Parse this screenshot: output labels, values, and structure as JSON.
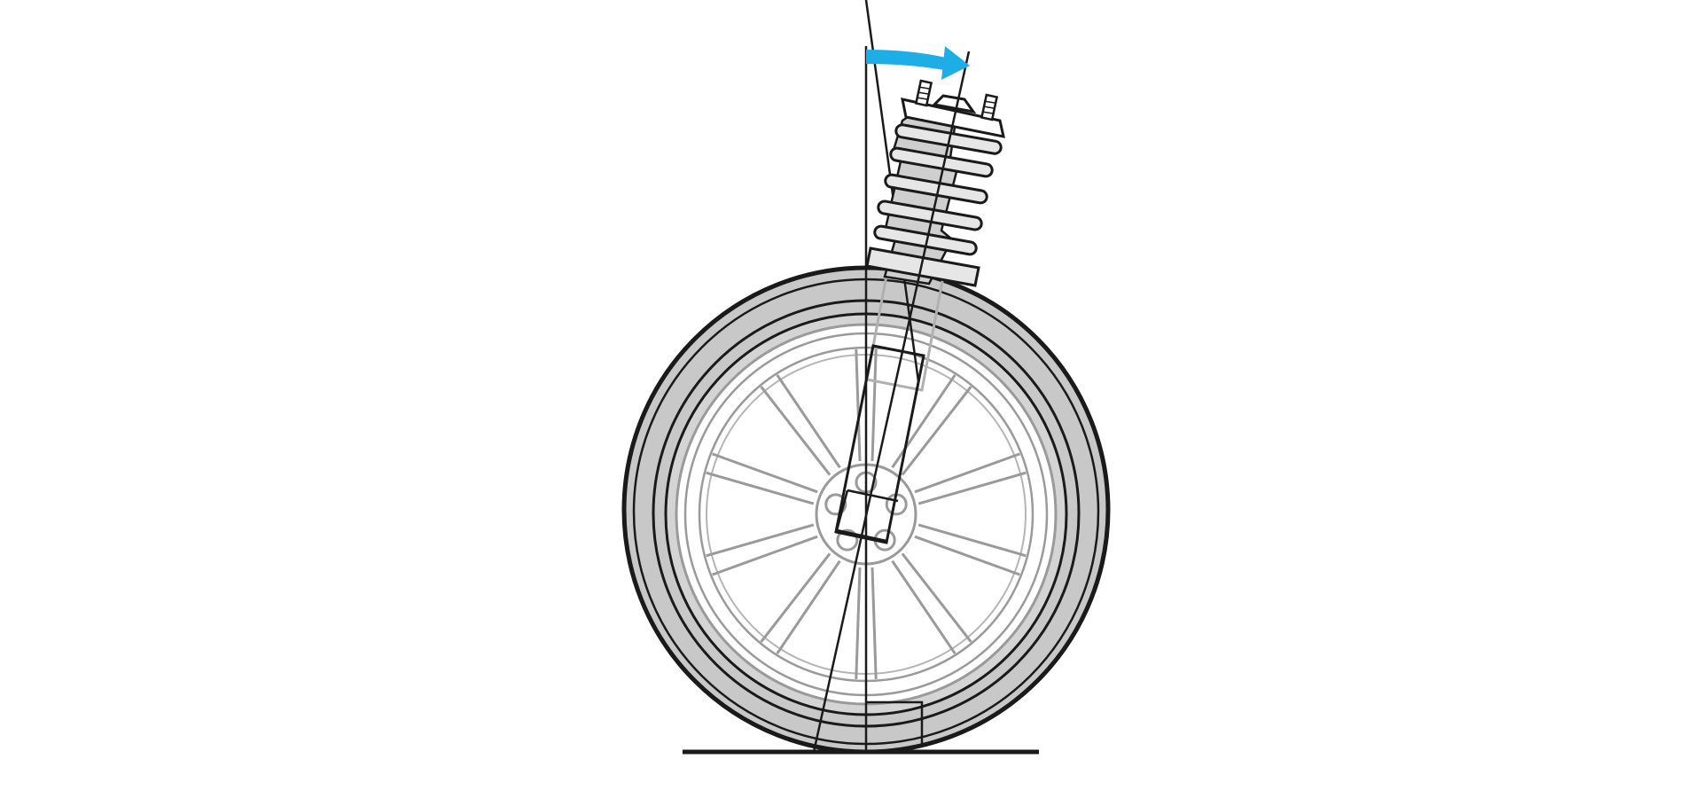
{
  "diagram": {
    "subject": "caster-angle-illustration",
    "colors": {
      "background": "#ffffff",
      "outline": "#1a1a1a",
      "tire": "#c8c8c8",
      "tire_inner": "#d4d4d4",
      "rim_line": "#9a9a9a",
      "rim_fill": "#ffffff",
      "spring": "#e6e6e6",
      "boot": "#cfcfcf",
      "strut_ghost": "#b0b0b0",
      "arrow": "#1eaee6"
    },
    "icons": [
      "wheel-icon",
      "coil-spring-strut-icon",
      "rotation-arrow-icon"
    ],
    "wheel": {
      "spoke_count": 10,
      "lug_count": 5
    },
    "caster_angle_deg": 6
  }
}
